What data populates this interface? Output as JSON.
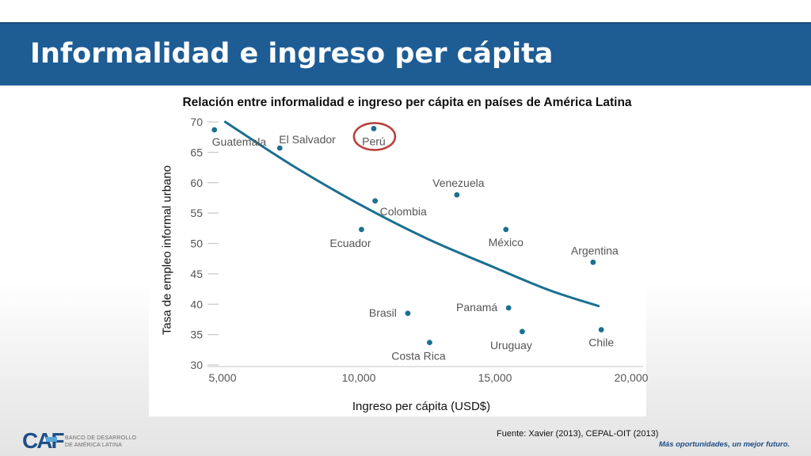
{
  "slide": {
    "title": "Informalidad e ingreso per cápita",
    "source": "Fuente:  Xavier (2013), CEPAL-OIT (2013)",
    "logo": {
      "mark": "CAF",
      "line1": "BANCO DE DESARROLLO",
      "line2": "DE AMÉRICA LATINA"
    },
    "slogan": "Más oportunidades, un mejor futuro."
  },
  "colors": {
    "banner": "#1e5c94",
    "series": "#1b6f91",
    "highlight": "#b8413c",
    "logo_dark": "#1e4f87",
    "logo_light": "#58a7d6"
  },
  "chart_data": {
    "type": "scatter",
    "title": "Relación entre informalidad e ingreso per cápita en países de América Latina",
    "xlabel": "Ingreso per cápita (USD$)",
    "ylabel": "Tasa de empleo informal urbano",
    "xlim": [
      5000,
      20000
    ],
    "ylim": [
      30,
      70
    ],
    "x_ticks": [
      {
        "v": 5000,
        "label": "5,000"
      },
      {
        "v": 10000,
        "label": "10,000"
      },
      {
        "v": 15000,
        "label": "15,000"
      },
      {
        "v": 20000,
        "label": "20,000"
      }
    ],
    "y_ticks": [
      {
        "v": 30,
        "label": "30"
      },
      {
        "v": 35,
        "label": "35"
      },
      {
        "v": 40,
        "label": "40"
      },
      {
        "v": 45,
        "label": "45"
      },
      {
        "v": 50,
        "label": "50"
      },
      {
        "v": 55,
        "label": "55"
      },
      {
        "v": 60,
        "label": "60"
      },
      {
        "v": 65,
        "label": "65"
      },
      {
        "v": 70,
        "label": "70"
      }
    ],
    "grid": false,
    "points": [
      {
        "label": "Guatemala",
        "x": 4700,
        "y": 68.7,
        "label_pos": "below-right"
      },
      {
        "label": "El Salvador",
        "x": 7100,
        "y": 65.7,
        "label_pos": "above-right"
      },
      {
        "label": "Perú",
        "x": 10550,
        "y": 68.9,
        "label_pos": "below",
        "highlight": true
      },
      {
        "label": "Colombia",
        "x": 10600,
        "y": 57.0,
        "label_pos": "below-right"
      },
      {
        "label": "Ecuador",
        "x": 10100,
        "y": 52.3,
        "label_pos": "below-left"
      },
      {
        "label": "Venezuela",
        "x": 13600,
        "y": 58.0,
        "label_pos": "above"
      },
      {
        "label": "México",
        "x": 15400,
        "y": 52.3,
        "label_pos": "below"
      },
      {
        "label": "Argentina",
        "x": 18600,
        "y": 46.9,
        "label_pos": "above"
      },
      {
        "label": "Brasil",
        "x": 11800,
        "y": 38.5,
        "label_pos": "left"
      },
      {
        "label": "Panamá",
        "x": 15500,
        "y": 39.4,
        "label_pos": "left"
      },
      {
        "label": "Uruguay",
        "x": 16000,
        "y": 35.5,
        "label_pos": "below-left"
      },
      {
        "label": "Costa Rica",
        "x": 12600,
        "y": 33.7,
        "label_pos": "below-left"
      },
      {
        "label": "Chile",
        "x": 18900,
        "y": 35.8,
        "label_pos": "below"
      }
    ],
    "trendline": {
      "type": "curve",
      "points": [
        [
          5100,
          70.0
        ],
        [
          7500,
          63.0
        ],
        [
          10000,
          56.5
        ],
        [
          12500,
          50.8
        ],
        [
          15000,
          46.0
        ],
        [
          17000,
          42.3
        ],
        [
          18800,
          39.7
        ]
      ]
    }
  }
}
